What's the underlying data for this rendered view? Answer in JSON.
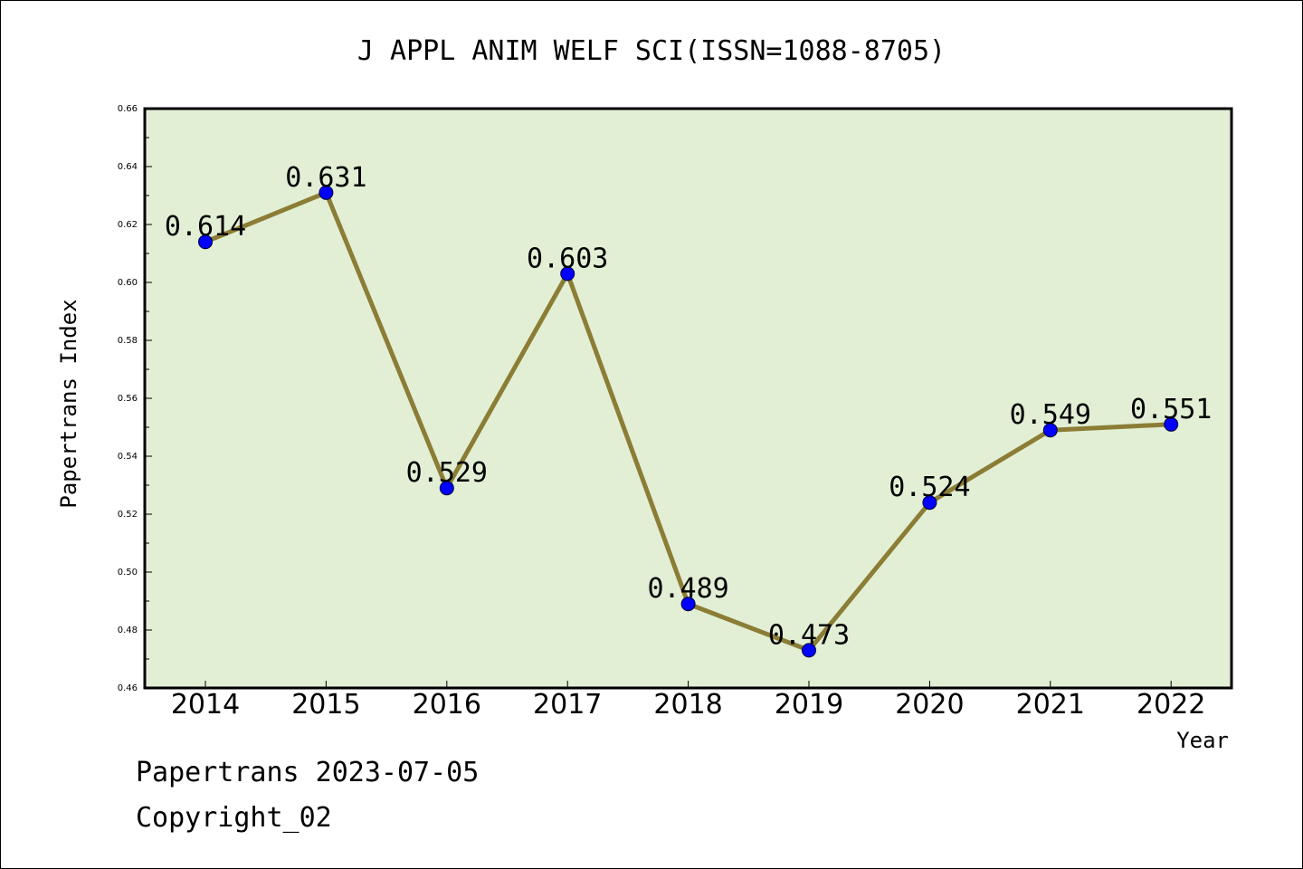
{
  "chart_data": {
    "type": "line",
    "title": "J APPL ANIM WELF SCI(ISSN=1088-8705)",
    "xlabel": "Year",
    "ylabel": "Papertrans Index",
    "x": [
      "2014",
      "2015",
      "2016",
      "2017",
      "2018",
      "2019",
      "2020",
      "2021",
      "2022"
    ],
    "series": [
      {
        "values": [
          0.614,
          0.631,
          0.529,
          0.603,
          0.489,
          0.473,
          0.524,
          0.549,
          0.551
        ]
      }
    ],
    "data_labels": [
      "0.614",
      "0.631",
      "0.529",
      "0.603",
      "0.489",
      "0.473",
      "0.524",
      "0.549",
      "0.551"
    ],
    "ylim": [
      0.46,
      0.66
    ],
    "yticks": [
      "0.46",
      "0.48",
      "0.50",
      "0.52",
      "0.54",
      "0.56",
      "0.58",
      "0.60",
      "0.62",
      "0.64",
      "0.66"
    ],
    "grid": false,
    "legend": "none",
    "colors": {
      "plot_background": "#e2efd5",
      "line": "#8b7d35",
      "marker": "#0000ff"
    }
  },
  "footer": {
    "line1": "Papertrans 2023-07-05",
    "line2": "Copyright_02"
  }
}
